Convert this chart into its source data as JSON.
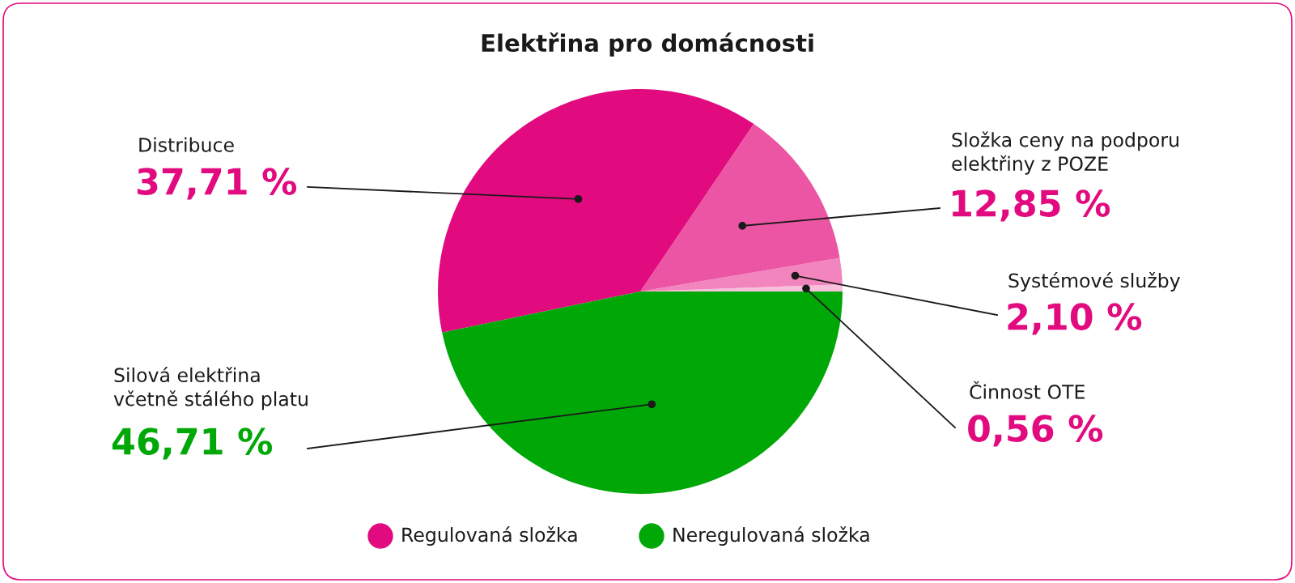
{
  "chart_data": {
    "type": "pie",
    "title": "Elektřina pro domácnosti",
    "categories": [
      "Činnost OTE",
      "Systémové služby",
      "Složka ceny na podporu\nelektřiny z POZE",
      "Distribuce",
      "Silová elektřina\nvčetně stálého platu"
    ],
    "values": [
      0.56,
      2.1,
      12.85,
      37.71,
      46.71
    ],
    "value_labels": [
      "0,56 %",
      "2,10 %",
      "12,85 %",
      "37,71 %",
      "46,71 %"
    ],
    "colors": [
      "#f8c0dc",
      "#f285bd",
      "#ec55a3",
      "#e20a7f",
      "#00a807"
    ],
    "annotations": [
      "Regulovaná složka",
      "Neregulovaná složka"
    ]
  }
}
